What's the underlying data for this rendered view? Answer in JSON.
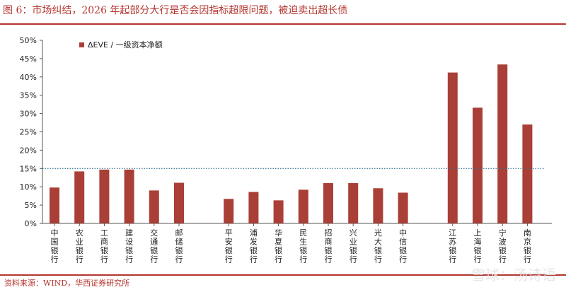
{
  "header": {
    "title": "图 6：市场纠结，2026 年起部分大行是否会因指标超限问题，被迫卖出超长债"
  },
  "footer": {
    "source": "资料来源：WIND，华西证券研究所",
    "watermark": "雪球：汤诗语"
  },
  "chart_data": {
    "type": "bar",
    "categories": [
      "中国银行",
      "农业银行",
      "工商银行",
      "建设银行",
      "交通银行",
      "邮储银行",
      "平安银行",
      "浦发银行",
      "华夏银行",
      "民生银行",
      "招商银行",
      "兴业银行",
      "光大银行",
      "中信银行",
      "江苏银行",
      "上海银行",
      "宁波银行",
      "南京银行"
    ],
    "groups": [
      6,
      8,
      4
    ],
    "series": [
      {
        "name": "ΔEVE / 一级资本净额",
        "values": [
          9.8,
          14.2,
          14.7,
          14.7,
          9.0,
          11.1,
          6.7,
          8.6,
          6.3,
          9.2,
          11.0,
          11.0,
          9.6,
          8.4,
          41.2,
          31.6,
          43.4,
          27.0
        ]
      }
    ],
    "ylim": [
      0,
      50
    ],
    "yticks": [
      0,
      5,
      10,
      15,
      20,
      25,
      30,
      35,
      40,
      45,
      50
    ],
    "ytick_labels": [
      "0%",
      "5%",
      "10%",
      "15%",
      "20%",
      "25%",
      "30%",
      "35%",
      "40%",
      "45%",
      "50%"
    ],
    "reference_line": 15,
    "legend_position": "top-left",
    "bar_color": "#a93f36",
    "ref_line_color": "#2e6e8e"
  }
}
